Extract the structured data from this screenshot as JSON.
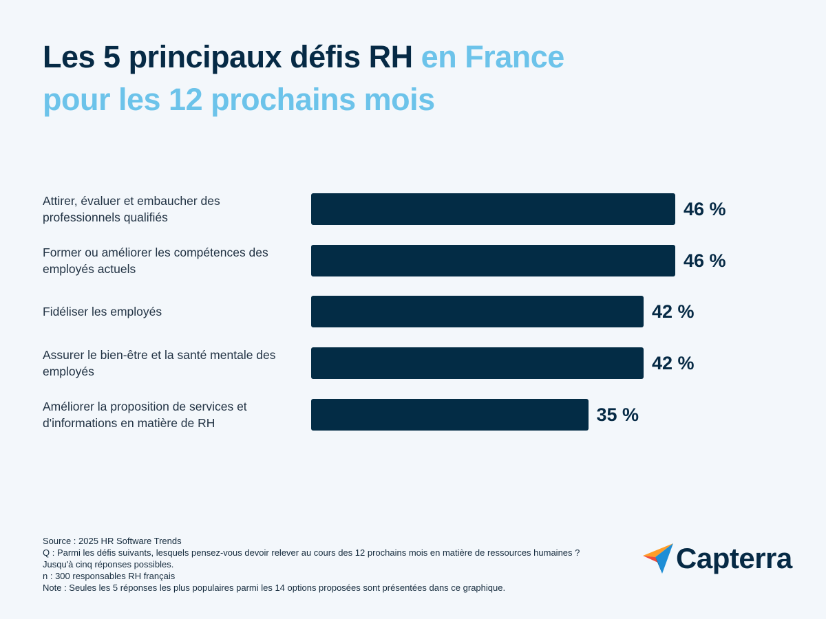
{
  "chart_data": {
    "type": "bar",
    "orientation": "horizontal",
    "title": [
      "Les 5 principaux défis RH",
      "en France",
      "pour les 12 prochains mois"
    ],
    "title_colors": [
      "#062a45",
      "#6cc3ea",
      "#6cc3ea"
    ],
    "categories": [
      "Attirer, évaluer et embaucher des professionnels qualifiés",
      "Former ou améliorer les compétences des employés actuels",
      "Fidéliser les employés",
      "Assurer le bien-être et la santé mentale des employés",
      "Améliorer la proposition de services et d'informations en matière de RH"
    ],
    "values": [
      46,
      46,
      42,
      42,
      35
    ],
    "value_labels": [
      "46 %",
      "46 %",
      "42 %",
      "42 %",
      "35 %"
    ],
    "color": "#032c45",
    "notes": [
      "Source : 2025 HR Software Trends",
      "Q : Parmi les défis suivants, lesquels pensez-vous devoir relever au cours des 12 prochains mois en matière de ressources humaines ? Jusqu'à cinq réponses possibles.",
      "n : 300 responsables RH français",
      "Note : Seules les 5 réponses les plus populaires parmi les 14 options proposées sont présentées dans ce graphique."
    ],
    "brand": "Capterra"
  }
}
